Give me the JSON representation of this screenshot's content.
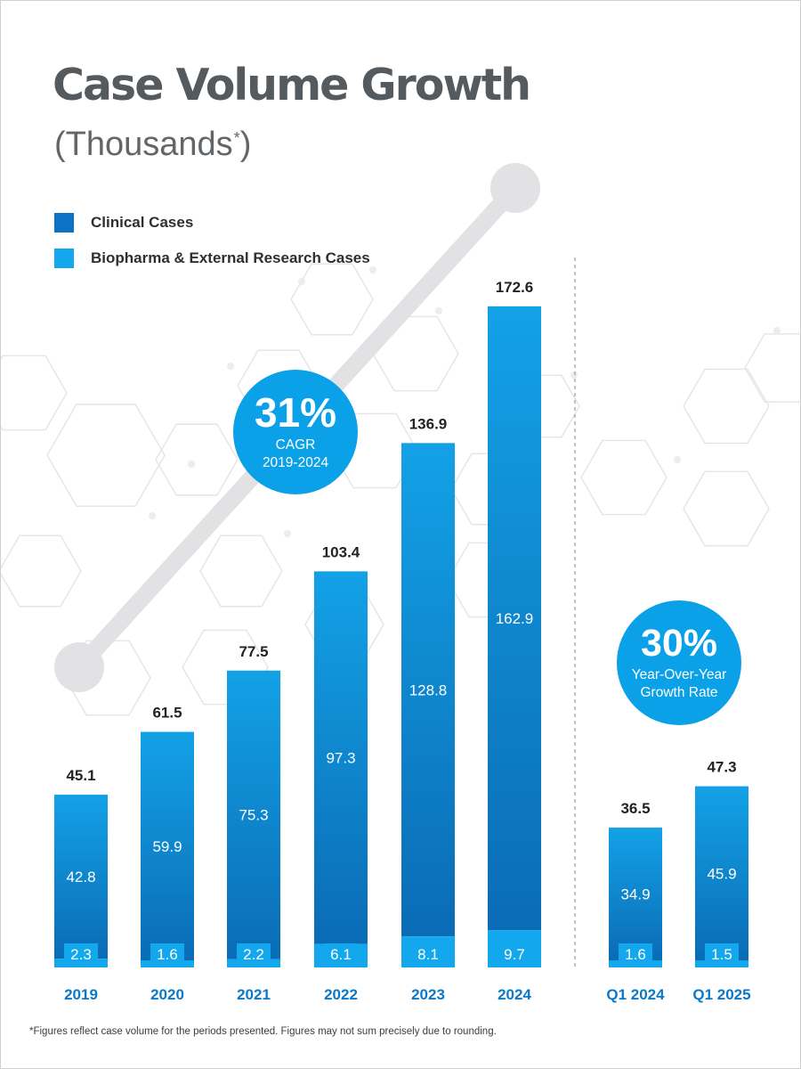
{
  "header": {
    "title": "Case Volume Growth",
    "subtitle": "(Thousands",
    "subtitle_mark": "*",
    "subtitle_close": ")"
  },
  "legend": [
    {
      "label": "Clinical Cases",
      "color": "#0a73c4"
    },
    {
      "label": "Biopharma & External Research Cases",
      "color": "#13a8ee"
    }
  ],
  "callouts": {
    "cagr": {
      "value": "31%",
      "line1": "CAGR",
      "line2": "2019-2024",
      "color": "#0aa1e8"
    },
    "yoy": {
      "value": "30%",
      "line1": "Year-Over-Year",
      "line2": "Growth Rate",
      "color": "#0aa1e8"
    }
  },
  "footnote": "*Figures reflect case volume for the periods presented. Figures may not sum precisely due to rounding.",
  "chart_data": [
    {
      "type": "bar",
      "stacked": true,
      "categories": [
        "2019",
        "2020",
        "2021",
        "2022",
        "2023",
        "2024"
      ],
      "series": [
        {
          "name": "Clinical Cases",
          "values": [
            42.8,
            59.9,
            75.3,
            97.3,
            128.8,
            162.9
          ]
        },
        {
          "name": "Biopharma & External Research Cases",
          "values": [
            2.3,
            1.6,
            2.2,
            6.1,
            8.1,
            9.7
          ]
        }
      ],
      "totals": [
        45.1,
        61.5,
        77.5,
        103.4,
        136.9,
        172.6
      ],
      "ylim": [
        0,
        180
      ]
    },
    {
      "type": "bar",
      "stacked": true,
      "categories": [
        "Q1 2024",
        "Q1 2025"
      ],
      "series": [
        {
          "name": "Clinical Cases",
          "values": [
            34.9,
            45.9
          ]
        },
        {
          "name": "Biopharma & External Research Cases",
          "values": [
            1.6,
            1.5
          ]
        }
      ],
      "totals": [
        36.5,
        47.3
      ],
      "ylim": [
        0,
        180
      ]
    }
  ],
  "colors": {
    "clinical_top": "#13a1e6",
    "clinical_bottom": "#0a6cb5",
    "biopharma": "#13a8ee",
    "year_label": "#0a78c8",
    "total_label": "#222222",
    "trend_line": "#e2e2e4",
    "hexagon": "#e6e6e6"
  }
}
